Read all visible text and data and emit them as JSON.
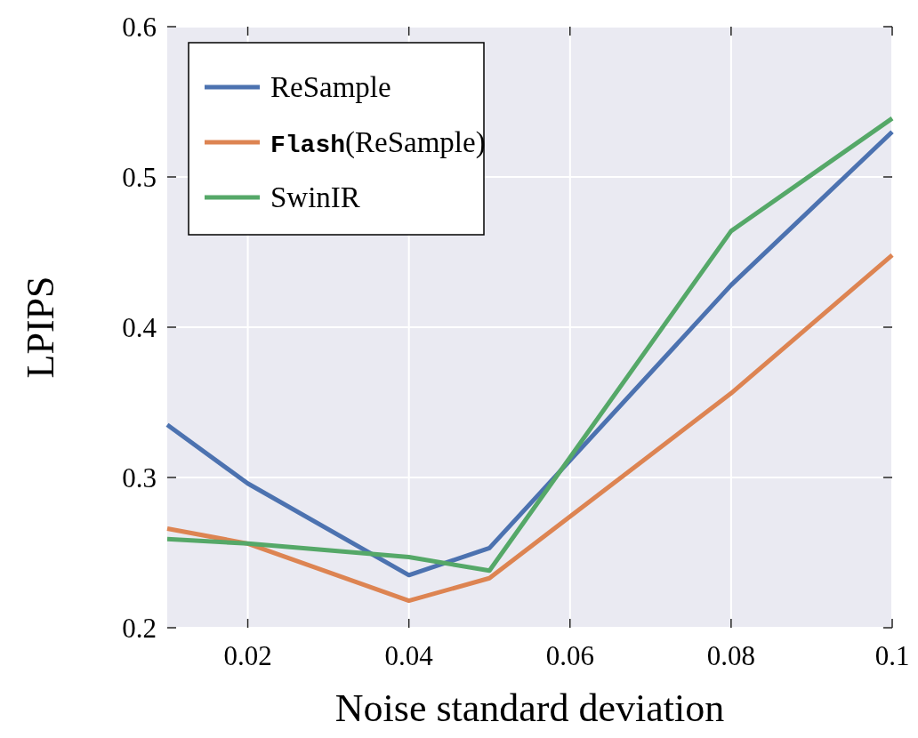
{
  "chart_data": {
    "type": "line",
    "xlabel": "Noise standard deviation",
    "ylabel": "LPIPS",
    "x": [
      0.01,
      0.02,
      0.04,
      0.05,
      0.08,
      0.1
    ],
    "series": [
      {
        "name": "ReSample",
        "color": "#4c72b0",
        "values": [
          0.335,
          0.296,
          0.235,
          0.253,
          0.428,
          0.53
        ]
      },
      {
        "name": "Flash(ReSample)",
        "color": "#dd8452",
        "values": [
          0.266,
          0.256,
          0.218,
          0.233,
          0.356,
          0.448
        ]
      },
      {
        "name": "SwinIR",
        "color": "#55a868",
        "values": [
          0.259,
          0.256,
          0.247,
          0.238,
          0.464,
          0.539
        ]
      }
    ],
    "xlim": [
      0.01,
      0.1
    ],
    "xticks": [
      {
        "value": 0.02,
        "label": "0.02"
      },
      {
        "value": 0.04,
        "label": "0.04"
      },
      {
        "value": 0.06,
        "label": "0.06"
      },
      {
        "value": 0.08,
        "label": "0.08"
      },
      {
        "value": 0.1,
        "label": "0.1"
      }
    ],
    "ylim": [
      0.2,
      0.6
    ],
    "yticks": [
      {
        "value": 0.2,
        "label": "0.2"
      },
      {
        "value": 0.3,
        "label": "0.3"
      },
      {
        "value": 0.4,
        "label": "0.4"
      },
      {
        "value": 0.5,
        "label": "0.5"
      },
      {
        "value": 0.6,
        "label": "0.6"
      }
    ],
    "grid": true,
    "legend": "top left",
    "marker": "none",
    "line_style": "solid"
  }
}
